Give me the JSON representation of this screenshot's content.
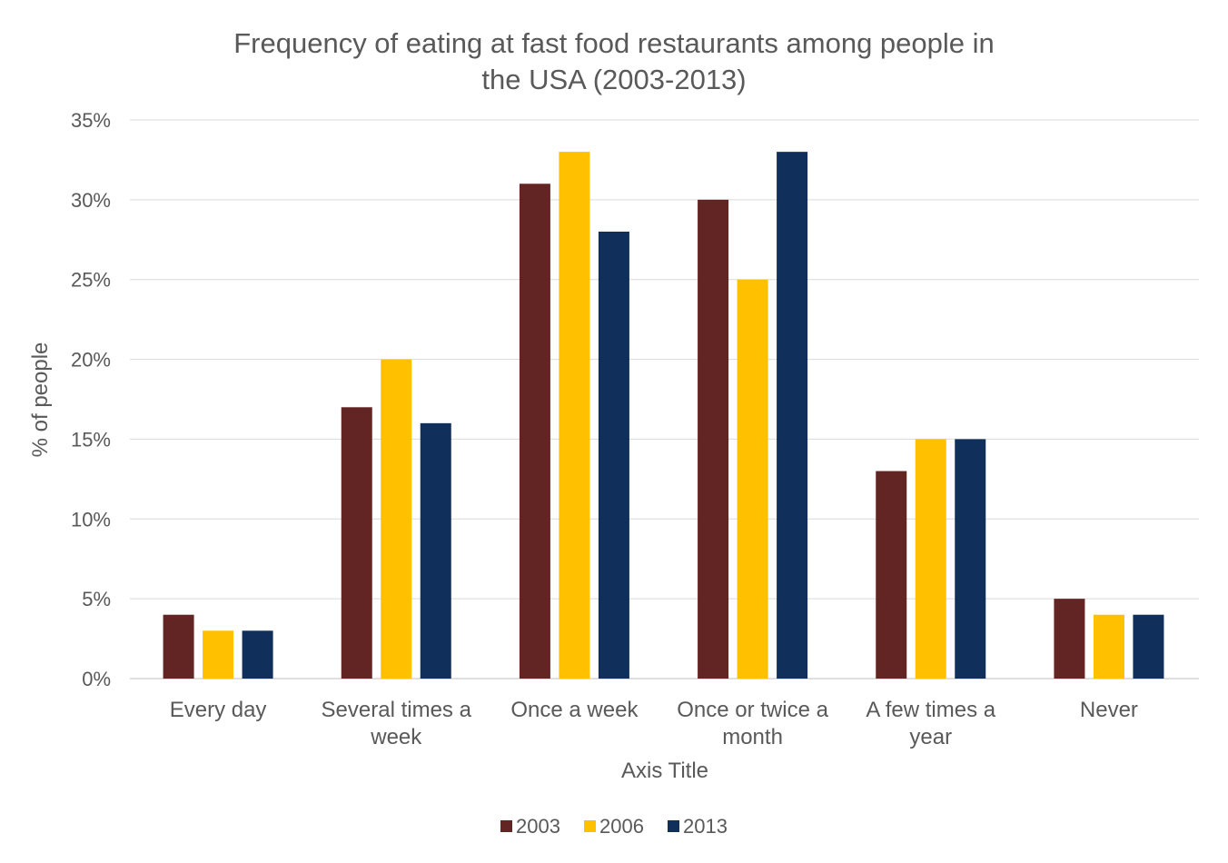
{
  "chart_data": {
    "type": "bar",
    "title": "Frequency of eating at fast food restaurants among people in the USA (2003-2013)",
    "title_lines": [
      "Frequency of eating at fast food restaurants among people in",
      "the USA (2003-2013)"
    ],
    "xlabel": "Axis Title",
    "ylabel": "% of people",
    "ylim": [
      0,
      35
    ],
    "yticks": [
      "0%",
      "5%",
      "10%",
      "15%",
      "20%",
      "25%",
      "30%",
      "35%"
    ],
    "grid": true,
    "legend_position": "bottom",
    "categories": [
      "Every day",
      "Several times a week",
      "Once a week",
      "Once or twice a month",
      "A few times a year",
      "Never"
    ],
    "category_lines": [
      [
        "Every day"
      ],
      [
        "Several times a",
        "week"
      ],
      [
        "Once a week"
      ],
      [
        "Once or twice a",
        "month"
      ],
      [
        "A few times a",
        "year"
      ],
      [
        "Never"
      ]
    ],
    "series": [
      {
        "name": "2003",
        "color": "#632523",
        "values": [
          4,
          17,
          31,
          30,
          13,
          5
        ]
      },
      {
        "name": "2006",
        "color": "#FFC000",
        "values": [
          3,
          20,
          33,
          25,
          15,
          4
        ]
      },
      {
        "name": "2013",
        "color": "#10305B",
        "values": [
          3,
          16,
          28,
          33,
          15,
          4
        ]
      }
    ]
  }
}
